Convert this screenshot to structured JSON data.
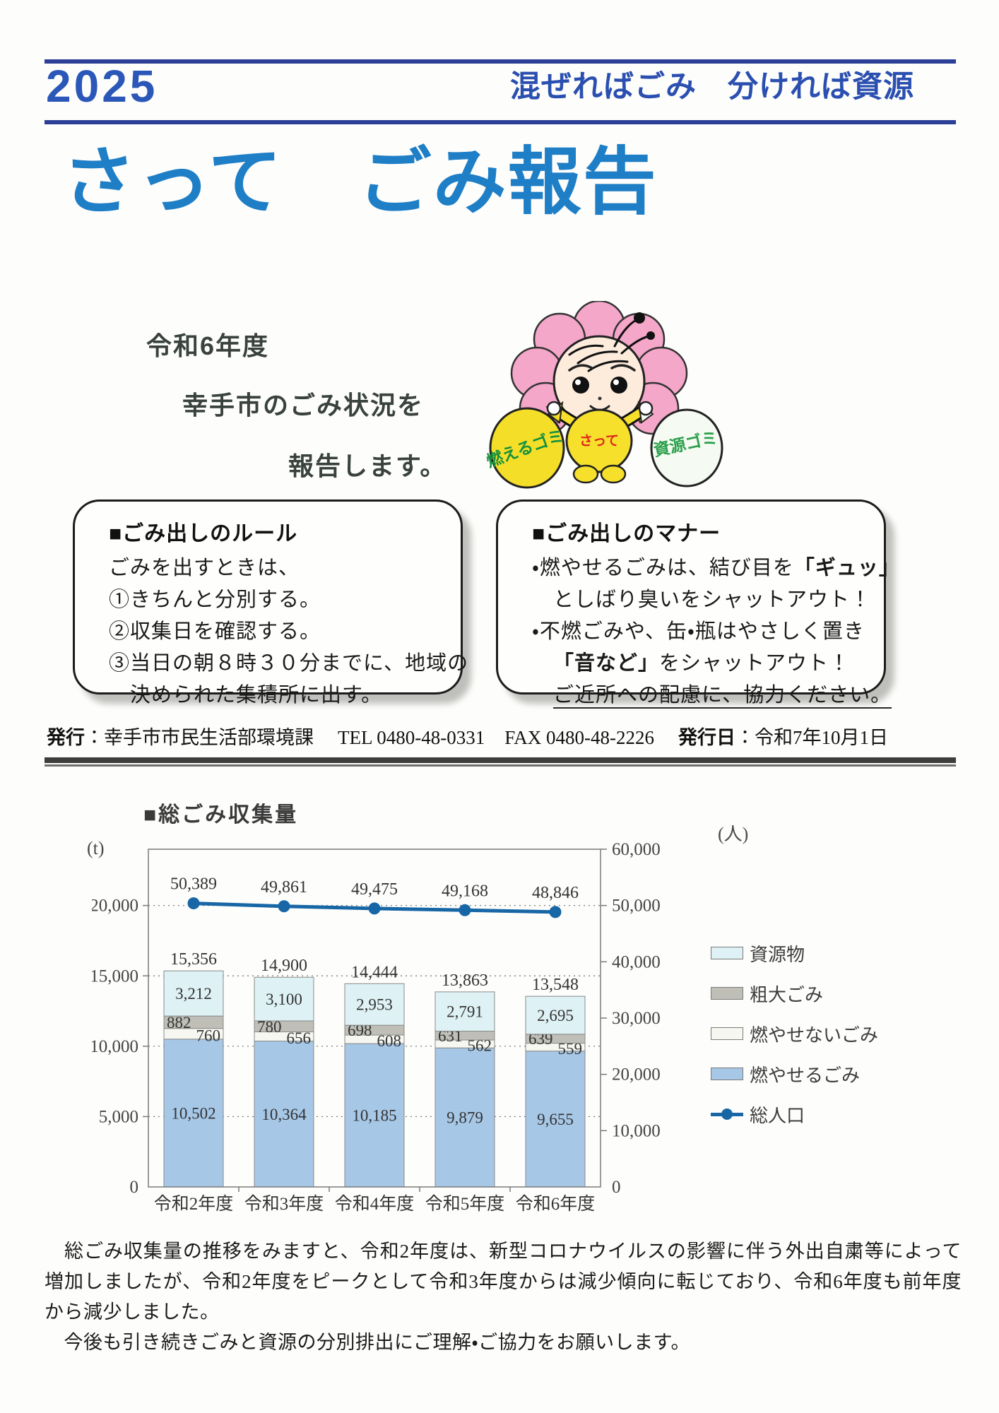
{
  "header": {
    "year": "2025",
    "slogan": "混ぜればごみ　分ければ資源"
  },
  "title": {
    "text": "さって　ごみ報告",
    "color": "#1e7ec6"
  },
  "intro": {
    "line1": "令和6年度",
    "line2": "幸手市のごみ状況を",
    "line3": "報告します。"
  },
  "mascot": {
    "chest": "さって",
    "left_bag": "燃えるゴミ",
    "right_bag": "資源ゴミ"
  },
  "rules_box": {
    "title": "■ごみ出しのルール",
    "lines": [
      "ごみを出すときは、",
      "①きちんと分別する。",
      "②収集日を確認する。",
      "③当日の朝８時３０分までに、地域の",
      "決められた集積所に出す。"
    ]
  },
  "manner_box": {
    "title": "■ごみ出しのマナー",
    "l1a": "・燃やせるごみは、結び目を",
    "l1b": "「ギュッ」",
    "l2": "としばり臭いをシャットアウト！",
    "l3": "・不燃ごみや、缶・瓶はやさしく置き",
    "l4a": "「音など」",
    "l4b": "をシャットアウト！",
    "l5": "ご近所への配慮に、協力ください。"
  },
  "publisher": {
    "label": "発行",
    "sep": "：",
    "org": "幸手市市民生活部環境課",
    "tel": "TEL 0480-48-0331",
    "fax": "FAX 0480-48-2226",
    "date_label": "発行日",
    "date_sep": "：",
    "date": "令和7年10月1日"
  },
  "chart_data": {
    "type": "bar",
    "title": "■総ごみ収集量",
    "subtitle": "",
    "left_unit": "(t)",
    "right_unit": "(人)",
    "categories": [
      "令和2年度",
      "令和3年度",
      "令和4年度",
      "令和5年度",
      "令和6年度"
    ],
    "series": [
      {
        "name": "燃やせるごみ",
        "color": "#a6c7e6",
        "label_pos": "center",
        "values": [
          10502,
          10364,
          10185,
          9879,
          9655
        ]
      },
      {
        "name": "燃やせないごみ",
        "color": "#f7f7f1",
        "label_pos": "right",
        "values": [
          760,
          656,
          608,
          562,
          559
        ]
      },
      {
        "name": "粗大ごみ",
        "color": "#bfbfb8",
        "label_pos": "left",
        "values": [
          882,
          780,
          698,
          631,
          639
        ]
      },
      {
        "name": "資源物",
        "color": "#def1f4",
        "label_pos": "center",
        "values": [
          3212,
          3100,
          2953,
          2791,
          2695
        ]
      }
    ],
    "totals": [
      15356,
      14900,
      14444,
      13863,
      13548
    ],
    "line": {
      "name": "総人口",
      "color": "#1766a6",
      "values": [
        50389,
        49861,
        49475,
        49168,
        48846
      ]
    },
    "left_axis": {
      "min": 0,
      "max": 24000,
      "tick_step": 5000,
      "tick_labels": [
        "0",
        "5,000",
        "10,000",
        "15,000",
        "20,000"
      ]
    },
    "right_axis": {
      "min": 0,
      "max": 60000,
      "tick_step": 10000,
      "tick_labels": [
        "0",
        "10,000",
        "20,000",
        "30,000",
        "40,000",
        "50,000",
        "60,000"
      ]
    },
    "legend": [
      "資源物",
      "粗大ごみ",
      "燃やせないごみ",
      "燃やせるごみ",
      "総人口"
    ],
    "grid": "dotted horizontal lines at left-axis ticks",
    "legend_position": "right"
  },
  "footer": {
    "para1": "　総ごみ収集量の推移をみますと、令和2年度は、新型コロナウイルスの影響に伴う外出自粛等によって増加しましたが、令和2年度をピークとして令和3年度からは減少傾向に転じており、令和6年度も前年度から減少しました。",
    "para2": "　今後も引き続きごみと資源の分別排出にご理解・ご協力をお願いします。"
  }
}
